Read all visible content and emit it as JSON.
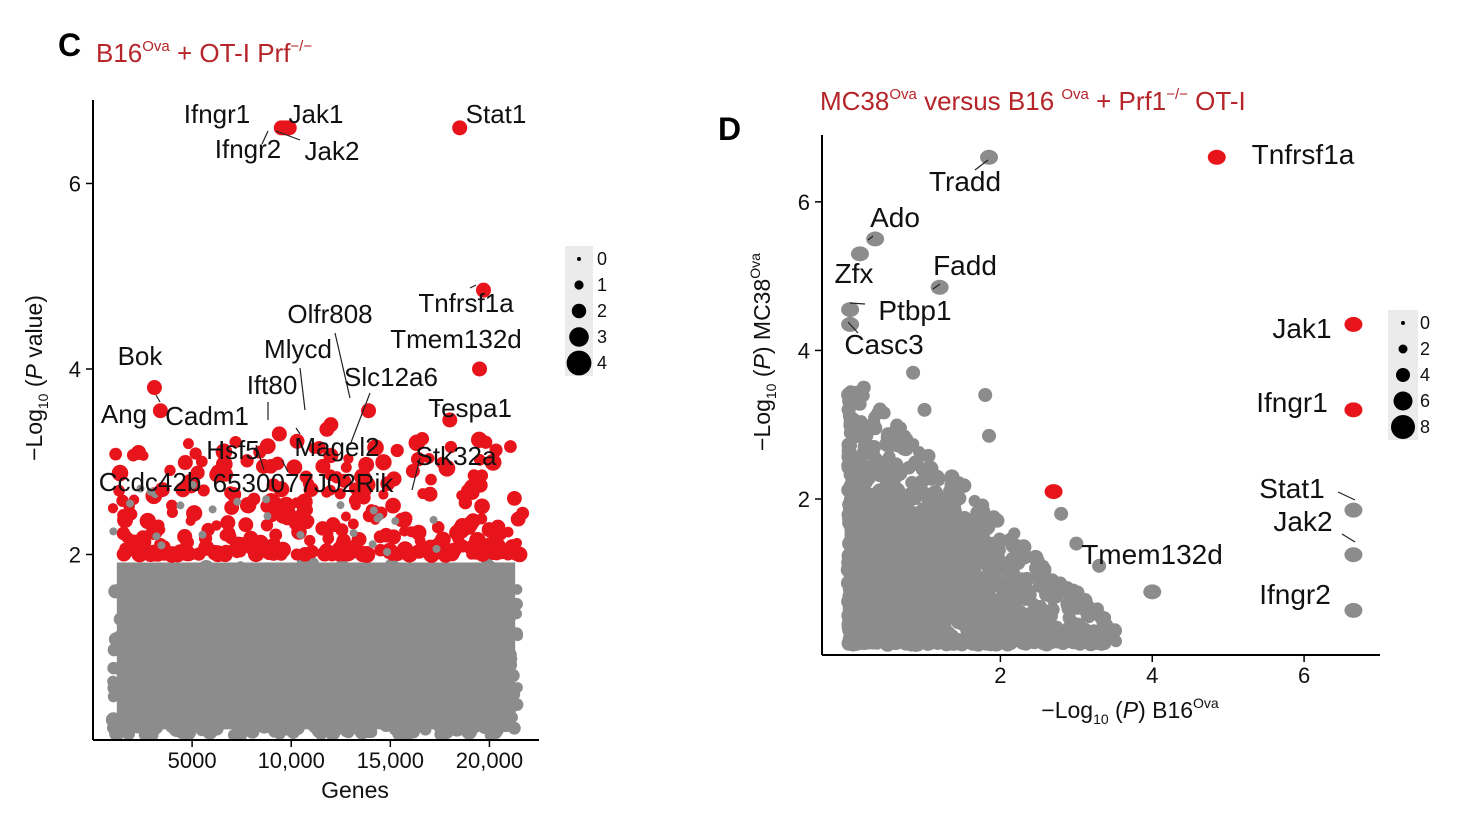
{
  "colors": {
    "highlight": "#e8141c",
    "background_points": "#8c8c8c",
    "title": "#b5252a",
    "legend_bg": "#ebebeb"
  },
  "chart_data": [
    {
      "panel": "C",
      "type": "scatter",
      "title_parts": [
        "B16",
        "Ova",
        " + OT-I Prf",
        "−/−"
      ],
      "xlabel": "Genes",
      "ylabel_parts": [
        "−Log",
        "10",
        " (",
        "P",
        " value)"
      ],
      "xlim": [
        0,
        22500
      ],
      "ylim": [
        0,
        6.9
      ],
      "xticks": [
        5000,
        10000,
        15000,
        20000
      ],
      "xtick_labels": [
        "5000",
        "10,000",
        "15,000",
        "20,000"
      ],
      "yticks": [
        2,
        4,
        6
      ],
      "ytick_labels": [
        "2",
        "4",
        "6"
      ],
      "threshold": 2.0,
      "background_cloud": {
        "x_range": [
          1000,
          21500
        ],
        "y_range": [
          0.05,
          2.0
        ]
      },
      "labeled_points": [
        {
          "gene": "Ifngr1",
          "x": 9500,
          "y": 6.6
        },
        {
          "gene": "Jak1",
          "x": 9800,
          "y": 6.6
        },
        {
          "gene": "Ifngr2",
          "x": 9650,
          "y": 6.6
        },
        {
          "gene": "Jak2",
          "x": 9900,
          "y": 6.6
        },
        {
          "gene": "Stat1",
          "x": 18500,
          "y": 6.6
        },
        {
          "gene": "Tnfrsf1a",
          "x": 19700,
          "y": 4.85
        },
        {
          "gene": "Tmem132d",
          "x": 19500,
          "y": 4.0
        },
        {
          "gene": "Olfr808",
          "x": 12000,
          "y": 3.4
        },
        {
          "gene": "Mlycd",
          "x": 11800,
          "y": 3.35
        },
        {
          "gene": "Slc12a6",
          "x": 13900,
          "y": 3.55
        },
        {
          "gene": "Tespa1",
          "x": 18000,
          "y": 3.45
        },
        {
          "gene": "Bok",
          "x": 3100,
          "y": 3.8
        },
        {
          "gene": "Ift80",
          "x": 9400,
          "y": 3.3
        },
        {
          "gene": "Ang",
          "x": 2300,
          "y": 3.1
        },
        {
          "gene": "Cadm1",
          "x": 3400,
          "y": 3.55
        },
        {
          "gene": "Hsf5",
          "x": 8600,
          "y": 2.95
        },
        {
          "gene": "Magel2",
          "x": 11600,
          "y": 2.95
        },
        {
          "gene": "Stk32a",
          "x": 17000,
          "y": 2.65
        },
        {
          "gene": "Ccdc42b",
          "x": 3500,
          "y": 2.7
        },
        {
          "gene": "6530077J02Rik",
          "x": 11000,
          "y": 2.7
        }
      ],
      "size_legend": {
        "values": [
          0,
          1,
          2,
          3,
          4
        ]
      }
    },
    {
      "panel": "D",
      "type": "scatter",
      "title_parts": [
        "MC38",
        "Ova",
        " versus B16 ",
        "Ova",
        " + Prf1",
        "−/−",
        " OT-I"
      ],
      "xlabel_parts": [
        "−Log",
        "10",
        " (",
        "P",
        ") B16",
        "Ova"
      ],
      "ylabel_parts": [
        "−Log",
        "10",
        " (",
        "P",
        ") MC38",
        "Ova"
      ],
      "xlim": [
        -0.35,
        7.0
      ],
      "ylim": [
        -0.1,
        6.9
      ],
      "xticks": [
        2,
        4,
        6
      ],
      "xtick_labels": [
        "2",
        "4",
        "6"
      ],
      "yticks": [
        2,
        4,
        6
      ],
      "ytick_labels": [
        "2",
        "4",
        "6"
      ],
      "background_cloud": {
        "x_range": [
          0,
          3.5
        ],
        "y_range": [
          0.05,
          3.5
        ]
      },
      "labeled_points": [
        {
          "gene": "Tnfrsf1a",
          "x": 4.85,
          "y": 6.6,
          "highlight": true
        },
        {
          "gene": "Tradd",
          "x": 1.85,
          "y": 6.6,
          "highlight": false
        },
        {
          "gene": "Ado",
          "x": 0.35,
          "y": 5.5,
          "highlight": false
        },
        {
          "gene": "Zfx",
          "x": 0.15,
          "y": 5.3,
          "highlight": false
        },
        {
          "gene": "Fadd",
          "x": 1.2,
          "y": 4.85,
          "highlight": false
        },
        {
          "gene": "Ptbp1",
          "x": 0.02,
          "y": 4.55,
          "highlight": false
        },
        {
          "gene": "Casc3",
          "x": 0.02,
          "y": 4.35,
          "highlight": false
        },
        {
          "gene": "Jak1",
          "x": 6.65,
          "y": 4.35,
          "highlight": true
        },
        {
          "gene": "Ifngr1",
          "x": 6.65,
          "y": 3.2,
          "highlight": true
        },
        {
          "gene": "Stat1",
          "x": 6.65,
          "y": 1.85,
          "highlight": false
        },
        {
          "gene": "Jak2",
          "x": 6.65,
          "y": 1.25,
          "highlight": false
        },
        {
          "gene": "Ifngr2",
          "x": 6.65,
          "y": 0.5,
          "highlight": false
        },
        {
          "gene": "Tmem132d",
          "x": 4.0,
          "y": 0.75,
          "highlight": false
        },
        {
          "gene": "",
          "x": 2.7,
          "y": 2.1,
          "highlight": true
        }
      ],
      "size_legend": {
        "values": [
          0,
          2,
          4,
          6,
          8
        ]
      }
    }
  ]
}
